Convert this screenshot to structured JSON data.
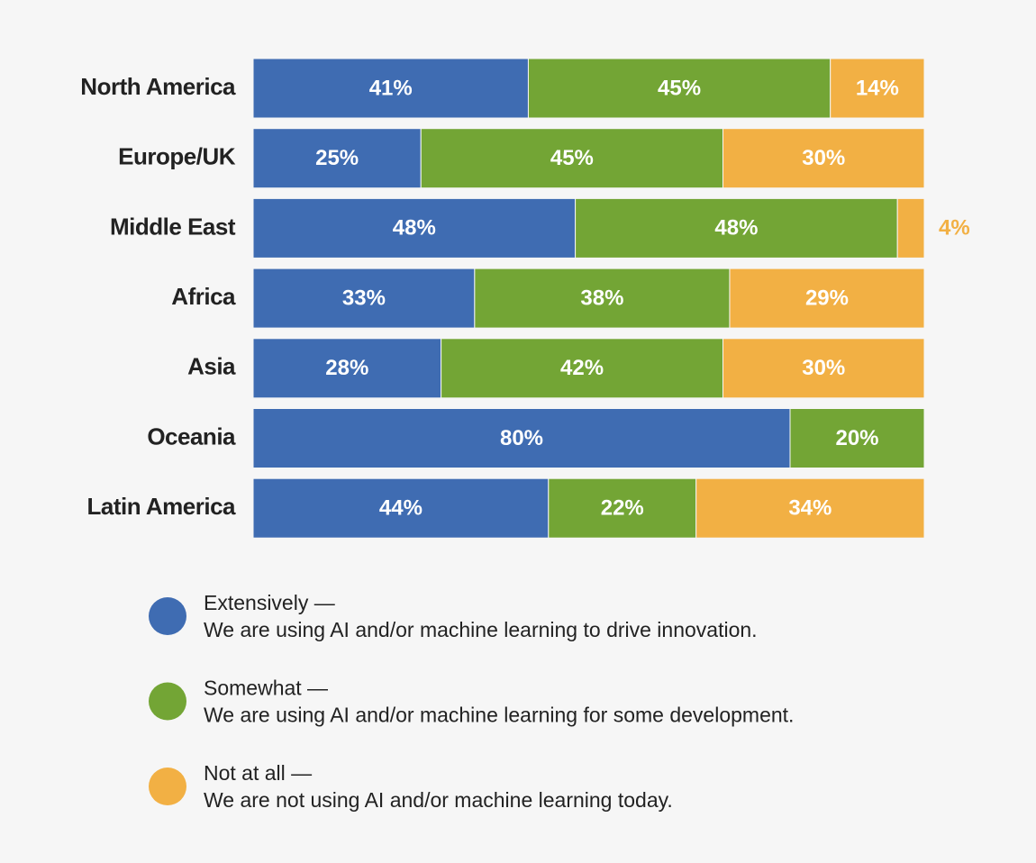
{
  "chart_data": {
    "type": "stacked_bar_horizontal",
    "categories": [
      "North America",
      "Europe/UK",
      "Middle East",
      "Africa",
      "Asia",
      "Oceania",
      "Latin America"
    ],
    "xlim": [
      0,
      100
    ],
    "series": [
      {
        "name": "Extensively —",
        "description": "We are using AI and/or machine learning to drive innovation.",
        "color": "#3f6cb2",
        "values": [
          41,
          25,
          48,
          33,
          28,
          80,
          44
        ],
        "value_labels": [
          "41%",
          "25%",
          "48%",
          "33%",
          "28%",
          "80%",
          "44%"
        ]
      },
      {
        "name": "Somewhat —",
        "description": "We are using AI and/or machine learning for some development.",
        "color": "#73a535",
        "values": [
          45,
          45,
          48,
          38,
          42,
          20,
          22
        ],
        "value_labels": [
          "45%",
          "45%",
          "48%",
          "38%",
          "42%",
          "20%",
          "22%"
        ]
      },
      {
        "name": "Not at all —",
        "description": "We are not using AI and/or machine learning today.",
        "color": "#f2b044",
        "values": [
          14,
          30,
          4,
          29,
          30,
          null,
          34
        ],
        "value_labels": [
          "14%",
          "30%",
          "4%",
          "29%",
          "30%",
          null,
          "34%"
        ]
      }
    ]
  }
}
